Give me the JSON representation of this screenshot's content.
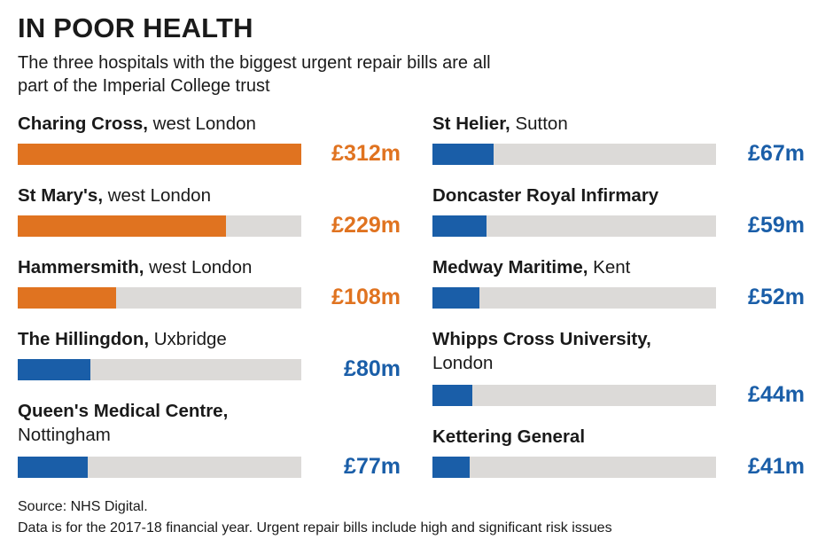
{
  "title": "IN POOR HEALTH",
  "subtitle": "The three hospitals with the biggest urgent repair bills are all part of the Imperial College trust",
  "colors": {
    "imperial": "#e07320",
    "other": "#1a5ea8",
    "track": "#dcdad8"
  },
  "chart_data": {
    "type": "bar",
    "orientation": "horizontal",
    "unit": "£m",
    "max_value": 312,
    "hospitals": [
      {
        "name": "Charing Cross,",
        "location": "west London",
        "value": 312,
        "label": "£312m",
        "group": "imperial"
      },
      {
        "name": "St Mary's,",
        "location": "west London",
        "value": 229,
        "label": "£229m",
        "group": "imperial"
      },
      {
        "name": "Hammersmith,",
        "location": "west London",
        "value": 108,
        "label": "£108m",
        "group": "imperial"
      },
      {
        "name": "The Hillingdon,",
        "location": "Uxbridge",
        "value": 80,
        "label": "£80m",
        "group": "other"
      },
      {
        "name": "Queen's Medical Centre,",
        "location": "Nottingham",
        "value": 77,
        "label": "£77m",
        "group": "other"
      },
      {
        "name": "St Helier,",
        "location": "Sutton",
        "value": 67,
        "label": "£67m",
        "group": "other"
      },
      {
        "name": "Doncaster Royal Infirmary",
        "location": "",
        "value": 59,
        "label": "£59m",
        "group": "other"
      },
      {
        "name": "Medway Maritime,",
        "location": "Kent",
        "value": 52,
        "label": "£52m",
        "group": "other"
      },
      {
        "name": "Whipps Cross University,",
        "location": "London",
        "value": 44,
        "label": "£44m",
        "group": "other"
      },
      {
        "name": "Kettering General",
        "location": "",
        "value": 41,
        "label": "£41m",
        "group": "other"
      }
    ]
  },
  "source": {
    "line1": "Source: NHS Digital.",
    "line2": "Data is for the 2017-18 financial year. Urgent repair bills include high and significant risk issues"
  }
}
